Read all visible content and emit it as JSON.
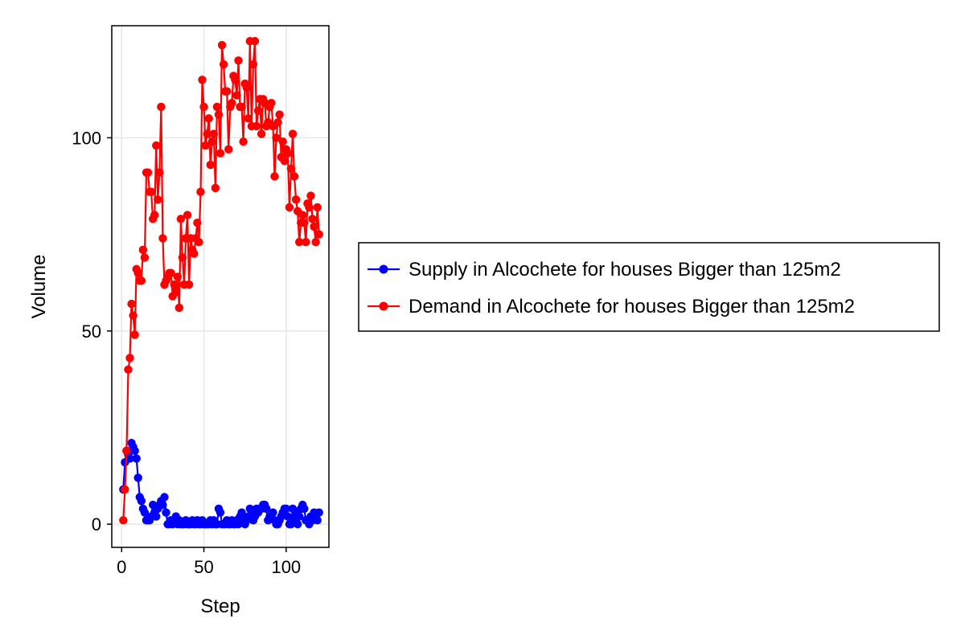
{
  "chart_data": {
    "type": "line",
    "title": "",
    "xlabel": "Step",
    "ylabel": "Volume",
    "xlim": [
      -6,
      126
    ],
    "ylim": [
      -6,
      129
    ],
    "xticks": [
      0,
      50,
      100
    ],
    "yticks": [
      0,
      50,
      100
    ],
    "grid": true,
    "legend_position": "right",
    "series": [
      {
        "name": "Supply in Alcochete for houses Bigger than 125m2",
        "color": "#0000ff",
        "x": [
          1,
          2,
          3,
          4,
          5,
          6,
          7,
          8,
          9,
          10,
          11,
          12,
          13,
          14,
          15,
          16,
          17,
          18,
          19,
          20,
          21,
          22,
          23,
          24,
          25,
          26,
          27,
          28,
          29,
          30,
          31,
          32,
          33,
          34,
          35,
          36,
          37,
          38,
          39,
          40,
          41,
          42,
          43,
          44,
          45,
          46,
          47,
          48,
          49,
          50,
          51,
          52,
          53,
          54,
          55,
          56,
          57,
          58,
          59,
          60,
          61,
          62,
          63,
          64,
          65,
          66,
          67,
          68,
          69,
          70,
          71,
          72,
          73,
          74,
          75,
          76,
          77,
          78,
          79,
          80,
          81,
          82,
          83,
          84,
          85,
          86,
          87,
          88,
          89,
          90,
          91,
          92,
          93,
          94,
          95,
          96,
          97,
          98,
          99,
          100,
          101,
          102,
          103,
          104,
          105,
          106,
          107,
          108,
          109,
          110,
          111,
          112,
          113,
          114,
          115,
          116,
          117,
          118,
          119,
          120
        ],
        "y": [
          9,
          16,
          19,
          18,
          17,
          21,
          20,
          19,
          17,
          12,
          7,
          6,
          4,
          3,
          1,
          1,
          1,
          2,
          5,
          3,
          2,
          4,
          5,
          6,
          5,
          7,
          3,
          0,
          0,
          1,
          0,
          1,
          2,
          0,
          1,
          0,
          0,
          0,
          1,
          0,
          0,
          0,
          1,
          0,
          0,
          1,
          0,
          0,
          1,
          0,
          0,
          0,
          0,
          1,
          0,
          1,
          0,
          0,
          4,
          3,
          0,
          0,
          0,
          1,
          0,
          0,
          1,
          0,
          0,
          1,
          0,
          2,
          3,
          1,
          0,
          1,
          2,
          4,
          3,
          1,
          2,
          4,
          3,
          4,
          4,
          5,
          5,
          4,
          1,
          2,
          2,
          3,
          1,
          0,
          0,
          1,
          2,
          3,
          4,
          4,
          2,
          0,
          0,
          4,
          1,
          3,
          0,
          2,
          4,
          5,
          4,
          1,
          1,
          0,
          2,
          1,
          3,
          2,
          1,
          3
        ]
      },
      {
        "name": "Demand in Alcochete for houses Bigger than 125m2",
        "color": "#ff0000",
        "x": [
          1,
          2,
          3,
          4,
          5,
          6,
          7,
          8,
          9,
          10,
          11,
          12,
          13,
          14,
          15,
          16,
          17,
          18,
          19,
          20,
          21,
          22,
          23,
          24,
          25,
          26,
          27,
          28,
          29,
          30,
          31,
          32,
          33,
          34,
          35,
          36,
          37,
          38,
          39,
          40,
          41,
          42,
          43,
          44,
          45,
          46,
          47,
          48,
          49,
          50,
          51,
          52,
          53,
          54,
          55,
          56,
          57,
          58,
          59,
          60,
          61,
          62,
          63,
          64,
          65,
          66,
          67,
          68,
          69,
          70,
          71,
          72,
          73,
          74,
          75,
          76,
          77,
          78,
          79,
          80,
          81,
          82,
          83,
          84,
          85,
          86,
          87,
          88,
          89,
          90,
          91,
          92,
          93,
          94,
          95,
          96,
          97,
          98,
          99,
          100,
          101,
          102,
          103,
          104,
          105,
          106,
          107,
          108,
          109,
          110,
          111,
          112,
          113,
          114,
          115,
          116,
          117,
          118,
          119,
          120
        ],
        "y": [
          1,
          9,
          19,
          40,
          43,
          57,
          54,
          49,
          66,
          65,
          63,
          63,
          71,
          69,
          91,
          91,
          86,
          86,
          79,
          80,
          98,
          84,
          91,
          108,
          74,
          62,
          63,
          64,
          65,
          65,
          59,
          62,
          60,
          64,
          56,
          79,
          69,
          62,
          74,
          80,
          62,
          74,
          71,
          70,
          74,
          78,
          73,
          86,
          115,
          108,
          98,
          101,
          105,
          93,
          99,
          101,
          87,
          108,
          106,
          96,
          124,
          119,
          112,
          112,
          97,
          108,
          109,
          116,
          115,
          111,
          120,
          108,
          108,
          99,
          114,
          113,
          105,
          125,
          103,
          119,
          125,
          103,
          107,
          110,
          101,
          110,
          109,
          103,
          104,
          108,
          109,
          103,
          90,
          100,
          104,
          106,
          95,
          99,
          94,
          97,
          96,
          82,
          92,
          101,
          90,
          84,
          81,
          73,
          78,
          80,
          78,
          73,
          83,
          82,
          85,
          79,
          77,
          73,
          82,
          75
        ]
      }
    ]
  }
}
